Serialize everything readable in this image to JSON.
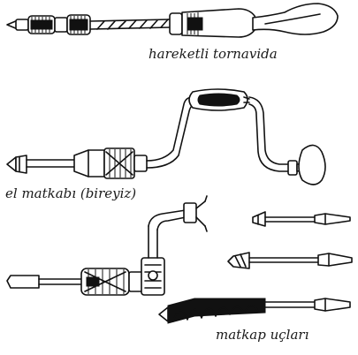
{
  "labels": {
    "screwdriver": "hareketli tornavida",
    "brace": "el matkabı (bireyiz)",
    "bits": "matkap uçları"
  }
}
